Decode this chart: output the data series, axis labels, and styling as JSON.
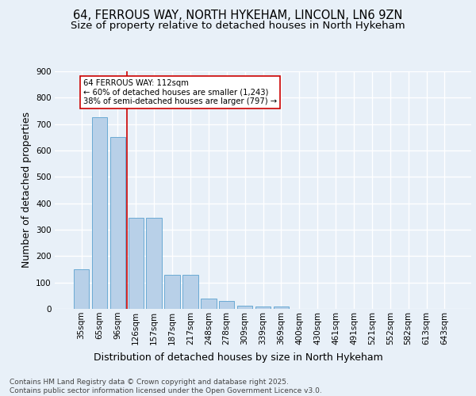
{
  "title1": "64, FERROUS WAY, NORTH HYKEHAM, LINCOLN, LN6 9ZN",
  "title2": "Size of property relative to detached houses in North Hykeham",
  "xlabel": "Distribution of detached houses by size in North Hykeham",
  "ylabel": "Number of detached properties",
  "footer": "Contains HM Land Registry data © Crown copyright and database right 2025.\nContains public sector information licensed under the Open Government Licence v3.0.",
  "categories": [
    "35sqm",
    "65sqm",
    "96sqm",
    "126sqm",
    "157sqm",
    "187sqm",
    "217sqm",
    "248sqm",
    "278sqm",
    "309sqm",
    "339sqm",
    "369sqm",
    "400sqm",
    "430sqm",
    "461sqm",
    "491sqm",
    "521sqm",
    "552sqm",
    "582sqm",
    "613sqm",
    "643sqm"
  ],
  "values": [
    150,
    725,
    650,
    345,
    345,
    130,
    130,
    40,
    30,
    12,
    10,
    8,
    0,
    0,
    0,
    0,
    0,
    0,
    0,
    0,
    0
  ],
  "bar_color": "#b8d0e8",
  "bar_edge_color": "#6aaad4",
  "red_line_x": 2.5,
  "annotation_text": "64 FERROUS WAY: 112sqm\n← 60% of detached houses are smaller (1,243)\n38% of semi-detached houses are larger (797) →",
  "annotation_box_color": "#ffffff",
  "annotation_box_edge_color": "#cc0000",
  "ylim": [
    0,
    900
  ],
  "yticks": [
    0,
    100,
    200,
    300,
    400,
    500,
    600,
    700,
    800,
    900
  ],
  "bg_color": "#e8f0f8",
  "plot_bg_color": "#e8f0f8",
  "grid_color": "#ffffff",
  "title_fontsize": 10.5,
  "subtitle_fontsize": 9.5,
  "tick_fontsize": 7.5,
  "label_fontsize": 9,
  "footer_fontsize": 6.5
}
